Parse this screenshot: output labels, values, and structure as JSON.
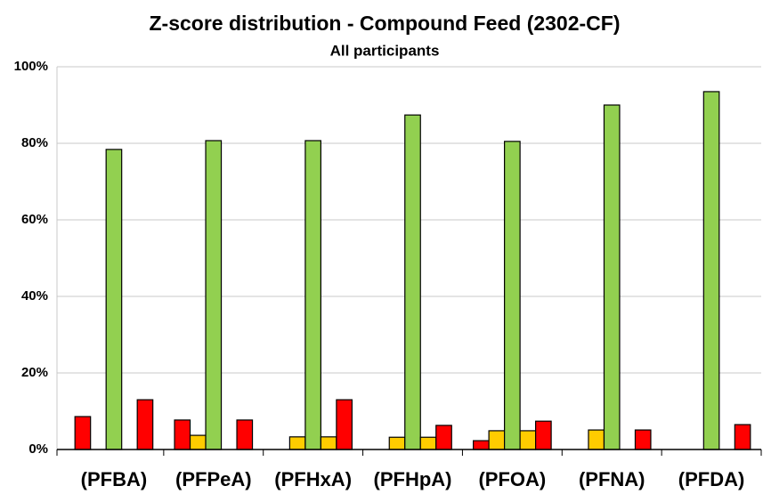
{
  "chart_data": {
    "type": "bar",
    "title": "Z-score distribution  - Compound Feed (2302-CF)",
    "subtitle": "All participants",
    "categories": [
      "(PFBA)",
      "(PFPeA)",
      "(PFHxA)",
      "(PFHpA)",
      "(PFOA)",
      "(PFNA)",
      "(PFDA)"
    ],
    "series": [
      {
        "color": "#ff0000",
        "values": [
          8.6,
          7.7,
          0,
          0,
          2.3,
          0,
          0
        ]
      },
      {
        "color": "#ffcc00",
        "values": [
          0,
          3.7,
          3.3,
          3.2,
          4.9,
          5.1,
          0
        ]
      },
      {
        "color": "#92d050",
        "values": [
          78.4,
          80.7,
          80.7,
          87.4,
          80.5,
          90,
          93.5
        ]
      },
      {
        "color": "#ffcc00",
        "values": [
          0,
          0,
          3.3,
          3.2,
          4.9,
          0,
          0
        ]
      },
      {
        "color": "#ff0000",
        "values": [
          13,
          7.7,
          13,
          6.3,
          7.4,
          5.1,
          6.5
        ]
      }
    ],
    "ylim": [
      0,
      100
    ],
    "yticks": [
      {
        "value": 0,
        "label": "0%"
      },
      {
        "value": 20,
        "label": "20%"
      },
      {
        "value": 40,
        "label": "40%"
      },
      {
        "value": 60,
        "label": "60%"
      },
      {
        "value": 80,
        "label": "80%"
      },
      {
        "value": 100,
        "label": "100%"
      }
    ],
    "grid": true
  }
}
